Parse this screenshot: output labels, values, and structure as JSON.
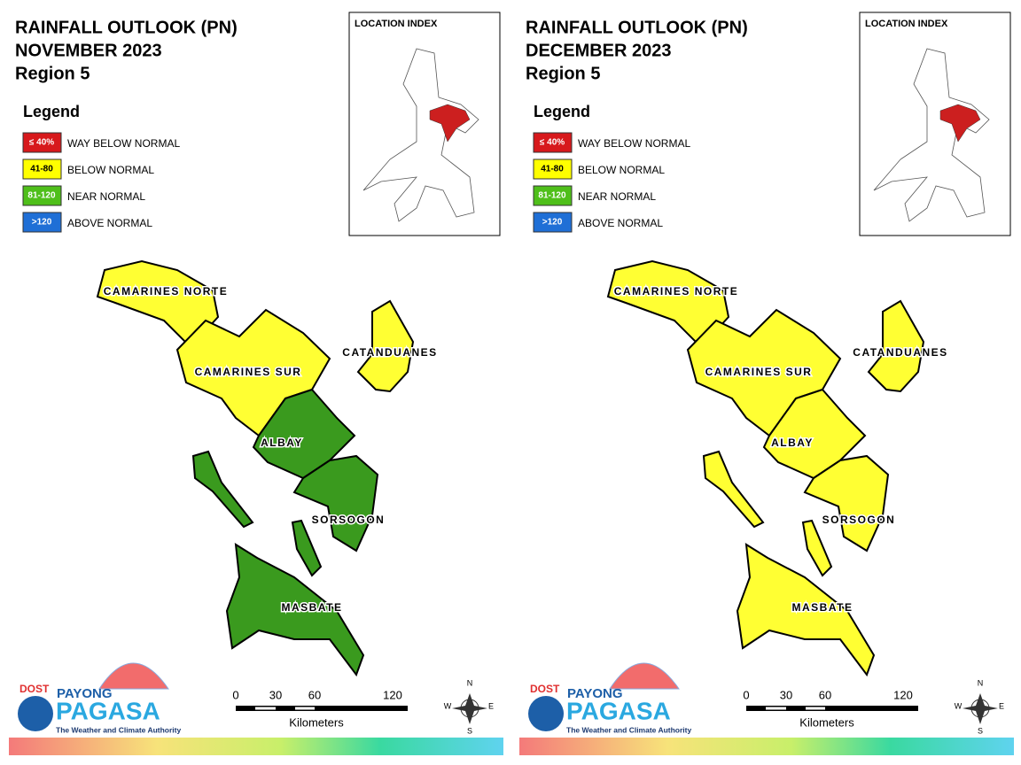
{
  "panels": [
    {
      "title": [
        "RAINFALL OUTLOOK (PN)",
        "NOVEMBER 2023",
        "Region 5"
      ],
      "location_index": "LOCATION INDEX",
      "legend": {
        "title": "Legend",
        "items": [
          {
            "code": "≤ 40%",
            "label": "WAY BELOW NORMAL",
            "color": "#d7191c"
          },
          {
            "code": "41-80",
            "label": "BELOW NORMAL",
            "color": "#ffff00"
          },
          {
            "code": "81-120",
            "label": "NEAR NORMAL",
            "color": "#4fbf1a"
          },
          {
            "code": ">120",
            "label": "ABOVE NORMAL",
            "color": "#1f6fd6"
          }
        ]
      },
      "provinces": [
        {
          "name": "CAMARINES NORTE",
          "color": "#ffff33"
        },
        {
          "name": "CAMARINES SUR",
          "color": "#ffff33"
        },
        {
          "name": "CATANDUANES",
          "color": "#ffff33"
        },
        {
          "name": "ALBAY",
          "color": "#3a9a1e"
        },
        {
          "name": "SORSOGON",
          "color": "#3a9a1e"
        },
        {
          "name": "MASBATE",
          "color": "#3a9a1e"
        }
      ],
      "scale": {
        "ticks": [
          "0",
          "30",
          "60",
          "120"
        ],
        "unit": "Kilometers"
      },
      "compass": [
        "N",
        "E",
        "S",
        "W"
      ],
      "logo": {
        "dost": "DOST",
        "payong": "PAYONG",
        "pagasa": "PAGASA",
        "tagline": "The Weather and Climate Authority"
      }
    },
    {
      "title": [
        "RAINFALL OUTLOOK (PN)",
        "DECEMBER 2023",
        "Region 5"
      ],
      "location_index": "LOCATION INDEX",
      "legend": {
        "title": "Legend",
        "items": [
          {
            "code": "≤ 40%",
            "label": "WAY BELOW NORMAL",
            "color": "#d7191c"
          },
          {
            "code": "41-80",
            "label": "BELOW NORMAL",
            "color": "#ffff00"
          },
          {
            "code": "81-120",
            "label": "NEAR NORMAL",
            "color": "#4fbf1a"
          },
          {
            "code": ">120",
            "label": "ABOVE NORMAL",
            "color": "#1f6fd6"
          }
        ]
      },
      "provinces": [
        {
          "name": "CAMARINES NORTE",
          "color": "#ffff33"
        },
        {
          "name": "CAMARINES SUR",
          "color": "#ffff33"
        },
        {
          "name": "CATANDUANES",
          "color": "#ffff33"
        },
        {
          "name": "ALBAY",
          "color": "#ffff33"
        },
        {
          "name": "SORSOGON",
          "color": "#ffff33"
        },
        {
          "name": "MASBATE",
          "color": "#ffff33"
        }
      ],
      "scale": {
        "ticks": [
          "0",
          "30",
          "60",
          "120"
        ],
        "unit": "Kilometers"
      },
      "compass": [
        "N",
        "E",
        "S",
        "W"
      ],
      "logo": {
        "dost": "DOST",
        "payong": "PAYONG",
        "pagasa": "PAGASA",
        "tagline": "The Weather and Climate Authority"
      }
    }
  ]
}
